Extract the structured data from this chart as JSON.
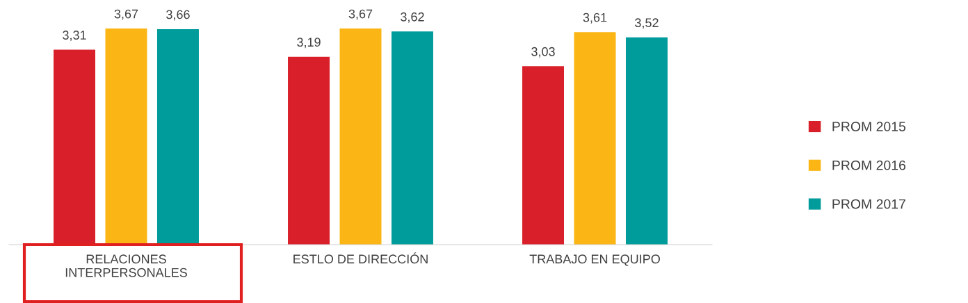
{
  "chart_data": {
    "type": "bar",
    "categories": [
      "RELACIONES\nINTERPERSONALES",
      "ESTLO DE DIRECCIÓN",
      "TRABAJO EN EQUIPO"
    ],
    "series": [
      {
        "name": "PROM 2015",
        "color": "#d9202a",
        "values": [
          3.31,
          3.19,
          3.03
        ],
        "value_labels": [
          "3,31",
          "3,19",
          "3,03"
        ]
      },
      {
        "name": "PROM 2016",
        "color": "#fbb616",
        "values": [
          3.67,
          3.67,
          3.61
        ],
        "value_labels": [
          "3,67",
          "3,67",
          "3,61"
        ]
      },
      {
        "name": "PROM 2017",
        "color": "#009b9b",
        "values": [
          3.66,
          3.62,
          3.52
        ],
        "value_labels": [
          "3,66",
          "3,62",
          "3,52"
        ]
      }
    ],
    "legend": "right"
  }
}
